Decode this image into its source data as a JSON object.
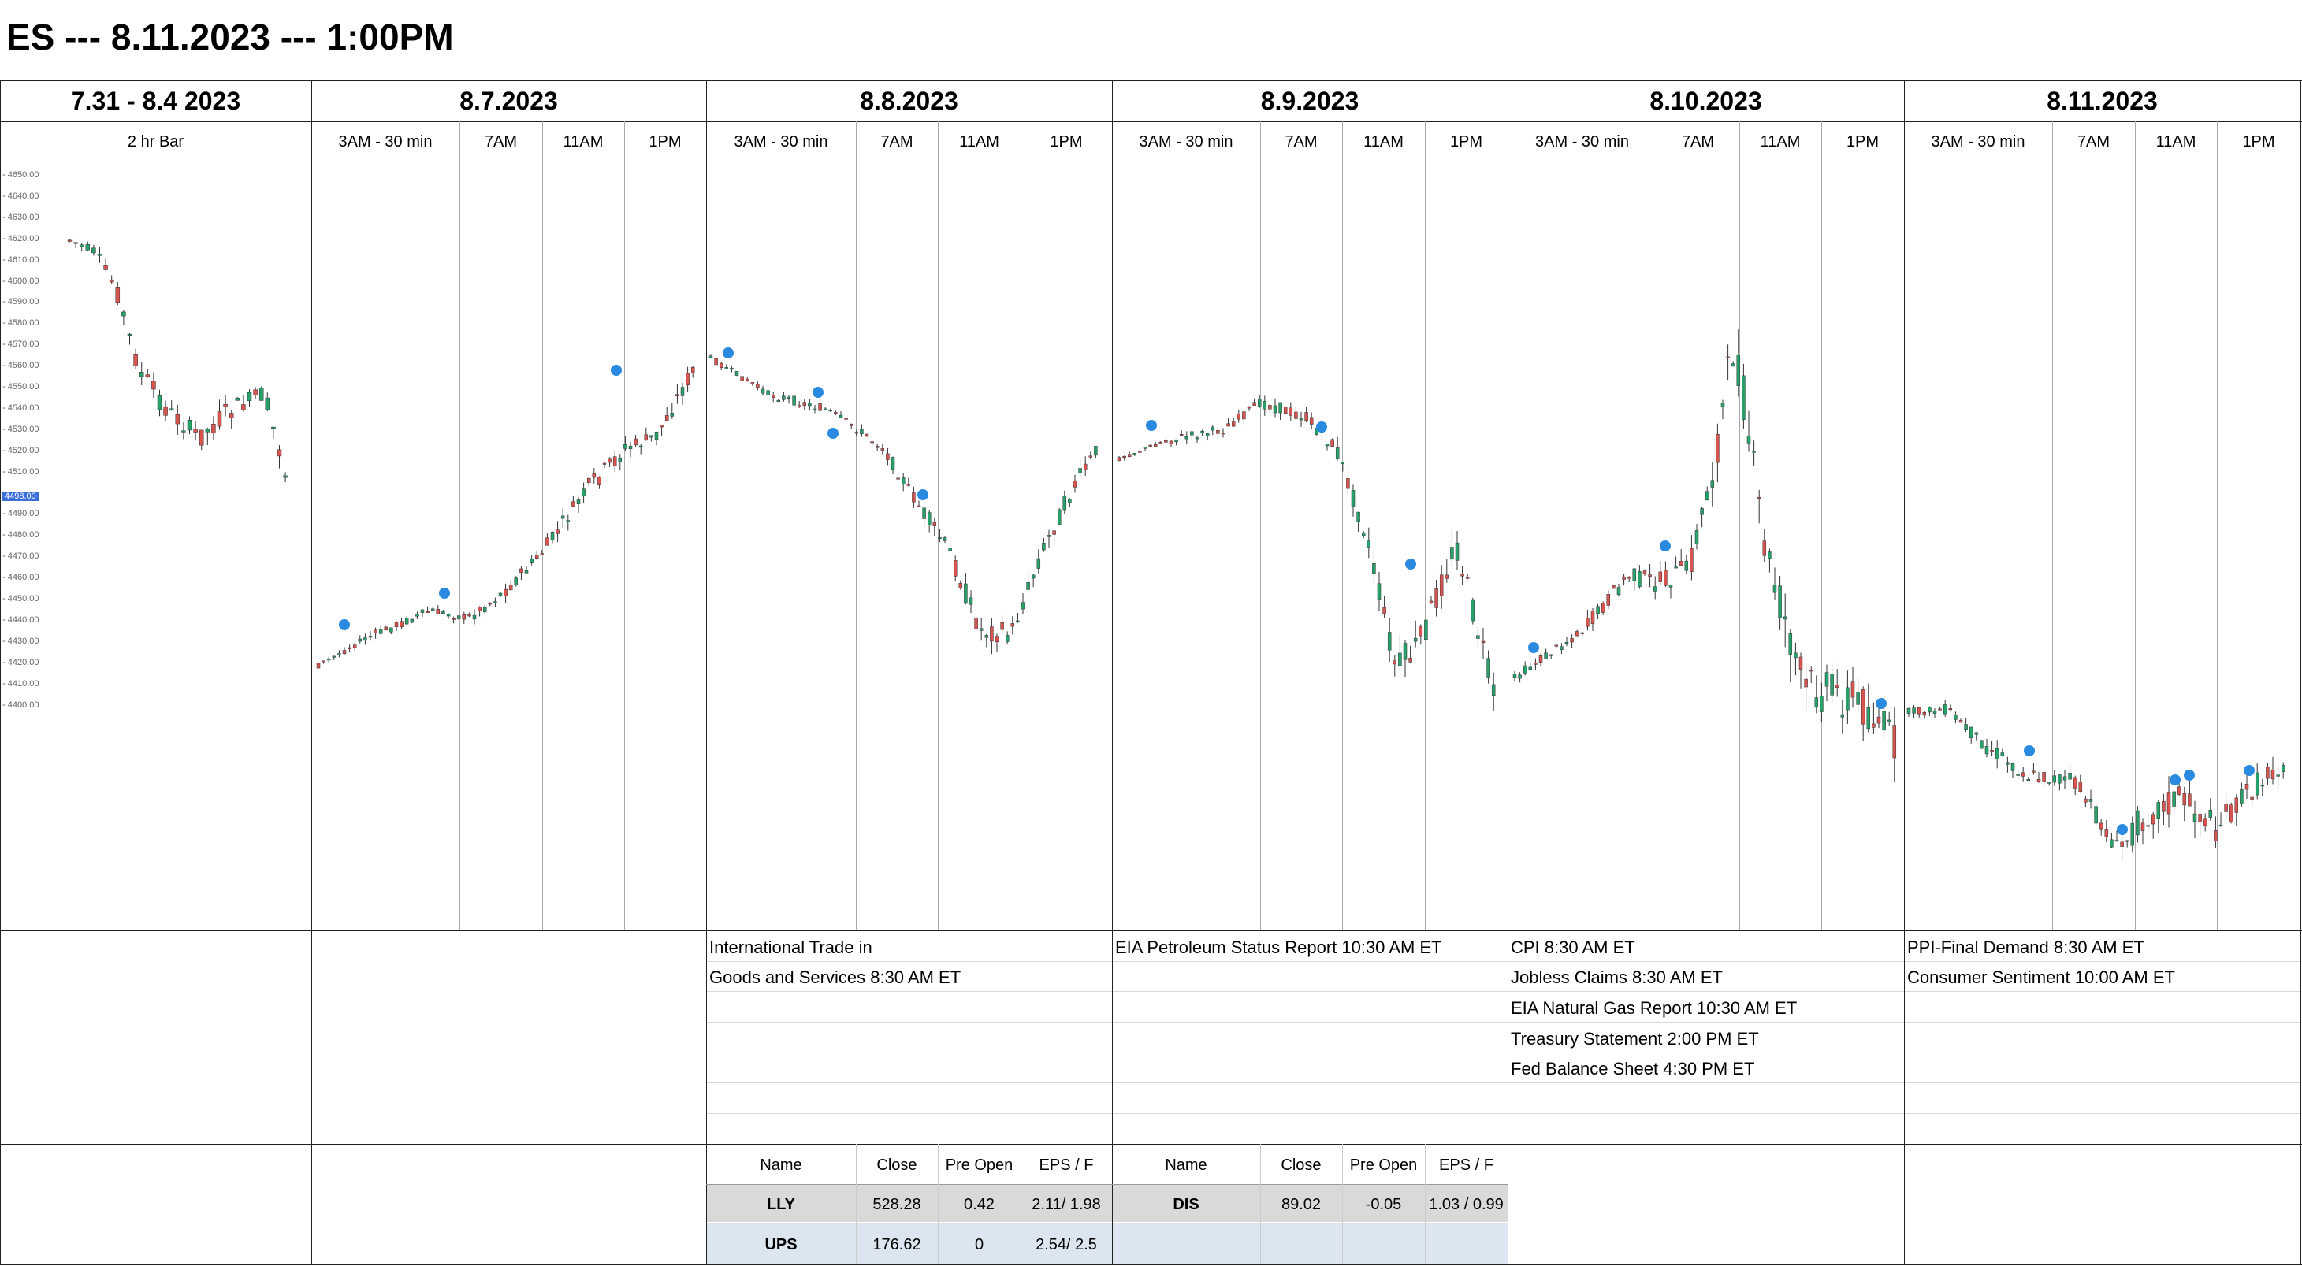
{
  "page_title": "ES --- 8.11.2023 --- 1:00PM",
  "panels": [
    {
      "date": "7.31 - 8.4  2023",
      "subs": [
        "2 hr Bar"
      ]
    },
    {
      "date": "8.7.2023",
      "subs": [
        "3AM - 30 min",
        "7AM",
        "11AM",
        "1PM"
      ]
    },
    {
      "date": "8.8.2023",
      "subs": [
        "3AM - 30 min",
        "7AM",
        "11AM",
        "1PM"
      ]
    },
    {
      "date": "8.9.2023",
      "subs": [
        "3AM - 30 min",
        "7AM",
        "11AM",
        "1PM"
      ]
    },
    {
      "date": "8.10.2023",
      "subs": [
        "3AM - 30 min",
        "7AM",
        "11AM",
        "1PM"
      ]
    },
    {
      "date": "8.11.2023",
      "subs": [
        "3AM - 30 min",
        "7AM",
        "11AM",
        "1PM"
      ]
    }
  ],
  "price_axis": {
    "ticks": [
      "4650.00",
      "4640.00",
      "4630.00",
      "4620.00",
      "4610.00",
      "4600.00",
      "4590.00",
      "4580.00",
      "4570.00",
      "4560.00",
      "4550.00",
      "4540.00",
      "4530.00",
      "4520.00",
      "4510.00",
      "4490.00",
      "4480.00",
      "4470.00",
      "4460.00",
      "4450.00",
      "4440.00",
      "4430.00",
      "4420.00",
      "4410.00",
      "4400.00"
    ],
    "current_price": "4498.00",
    "highlight_color": "#3a6fd8"
  },
  "events": {
    "p88": [
      "International Trade in",
      "Goods and Services 8:30 AM ET"
    ],
    "p89": [
      "EIA Petroleum Status Report 10:30 AM ET"
    ],
    "p810": [
      "CPI 8:30 AM ET",
      "Jobless Claims 8:30 AM ET",
      "EIA Natural Gas Report 10:30 AM ET",
      "Treasury Statement 2:00 PM ET",
      "Fed Balance Sheet 4:30 PM ET"
    ],
    "p811": [
      "PPI-Final Demand 8:30 AM ET",
      "Consumer Sentiment 10:00 AM ET"
    ]
  },
  "earnings_88": {
    "headers": [
      "Name",
      "Close",
      "Pre Open",
      "EPS / F"
    ],
    "rows": [
      [
        "LLY",
        "528.28",
        "0.42",
        "2.11/ 1.98"
      ],
      [
        "UPS",
        "176.62",
        "0",
        "2.54/ 2.5"
      ]
    ]
  },
  "earnings_89": {
    "headers": [
      "Name",
      "Close",
      "Pre Open",
      "EPS / F"
    ],
    "rows": [
      [
        "DIS",
        "89.02",
        "-0.05",
        "1.03 / 0.99"
      ]
    ]
  },
  "colors": {
    "up": "#26a269",
    "down": "#d9534f",
    "marker": "#2a8ae0",
    "row_gray": "#d9d9d9",
    "row_blue": "#dce6f1"
  }
}
